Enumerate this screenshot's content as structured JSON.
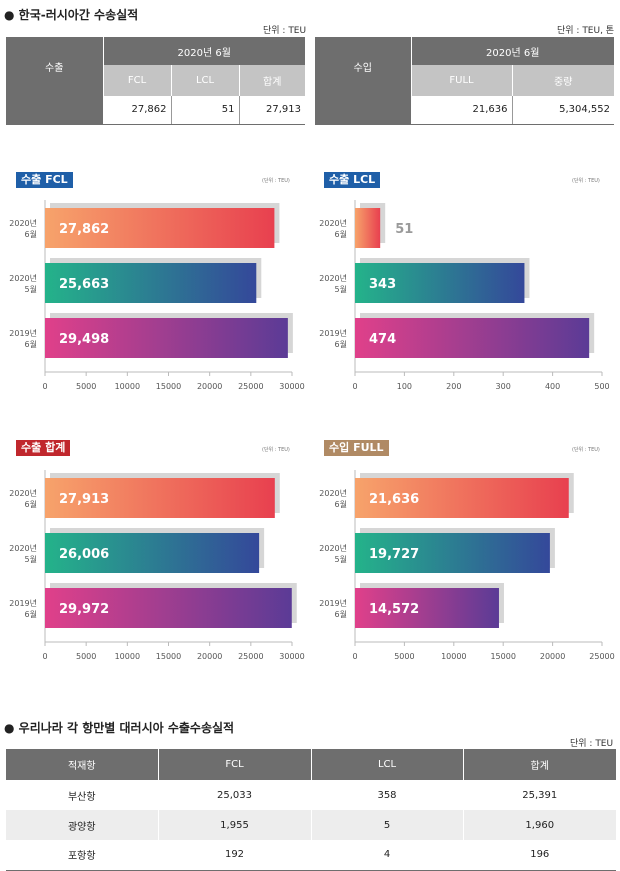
{
  "top": {
    "title": "● 한국-러시아간 수송실적",
    "export": {
      "unit": "단위 : TEU",
      "row_label": "수출",
      "period": "2020년 6월",
      "headers": [
        "FCL",
        "LCL",
        "합계"
      ],
      "values": [
        "27,862",
        "51",
        "27,913"
      ]
    },
    "import": {
      "unit": "단위 : TEU, 톤",
      "row_label": "수입",
      "period": "2020년 6월",
      "headers": [
        "FULL",
        "중량"
      ],
      "values": [
        "21,636",
        "5,304,552"
      ]
    }
  },
  "chart_data": [
    {
      "type": "bar",
      "orientation": "horizontal",
      "title": "수출 FCL",
      "unit_note": "(단위 : TEU)",
      "categories": [
        [
          "2020년",
          "6월"
        ],
        [
          "2020년",
          "5월"
        ],
        [
          "2019년",
          "6월"
        ]
      ],
      "values": [
        27862,
        25663,
        29498
      ],
      "value_labels": [
        "27,862",
        "25,663",
        "29,498"
      ],
      "xlim": [
        0,
        30000
      ],
      "ticks": [
        0,
        5000,
        10000,
        15000,
        20000,
        25000,
        30000
      ]
    },
    {
      "type": "bar",
      "orientation": "horizontal",
      "title": "수출 LCL",
      "unit_note": "(단위 : TEU)",
      "categories": [
        [
          "2020년",
          "6월"
        ],
        [
          "2020년",
          "5월"
        ],
        [
          "2019년",
          "6월"
        ]
      ],
      "values": [
        51,
        343,
        474
      ],
      "value_labels": [
        "51",
        "343",
        "474"
      ],
      "xlim": [
        0,
        500
      ],
      "ticks": [
        0,
        100,
        200,
        300,
        400,
        500
      ]
    },
    {
      "type": "bar",
      "orientation": "horizontal",
      "title": "수출 합계",
      "unit_note": "(단위 : TEU)",
      "categories": [
        [
          "2020년",
          "6월"
        ],
        [
          "2020년",
          "5월"
        ],
        [
          "2019년",
          "6월"
        ]
      ],
      "values": [
        27913,
        26006,
        29972
      ],
      "value_labels": [
        "27,913",
        "26,006",
        "29,972"
      ],
      "xlim": [
        0,
        30000
      ],
      "ticks": [
        0,
        5000,
        10000,
        15000,
        20000,
        25000,
        30000
      ]
    },
    {
      "type": "bar",
      "orientation": "horizontal",
      "title": "수입 FULL",
      "unit_note": "(단위 : TEU)",
      "categories": [
        [
          "2020년",
          "6월"
        ],
        [
          "2020년",
          "5월"
        ],
        [
          "2019년",
          "6월"
        ]
      ],
      "values": [
        21636,
        19727,
        14572
      ],
      "value_labels": [
        "21,636",
        "19,727",
        "14,572"
      ],
      "xlim": [
        0,
        25000
      ],
      "ticks": [
        0,
        5000,
        10000,
        15000,
        20000,
        25000
      ]
    }
  ],
  "bottom": {
    "title": "● 우리나라 각 항만별 대러시아 수출수송실적",
    "unit": "단위 : TEU",
    "headers": [
      "적재항",
      "FCL",
      "LCL",
      "합계"
    ],
    "rows": [
      [
        "부산항",
        "25,033",
        "358",
        "25,391"
      ],
      [
        "광양항",
        "1,955",
        "5",
        "1,960"
      ],
      [
        "포항항",
        "192",
        "4",
        "196"
      ]
    ]
  },
  "colors": {
    "header_dark": "#6e6e6e",
    "header_light": "#c4c4c4",
    "badge_blue": "#1f5fa8",
    "badge_red": "#c0272d",
    "badge_tan": "#b08a64",
    "bar_top": [
      "#f7a36b",
      "#e8404f"
    ],
    "bar_mid": [
      "#24b38a",
      "#34489a"
    ],
    "bar_bot": [
      "#e0408a",
      "#5b3b96"
    ]
  }
}
